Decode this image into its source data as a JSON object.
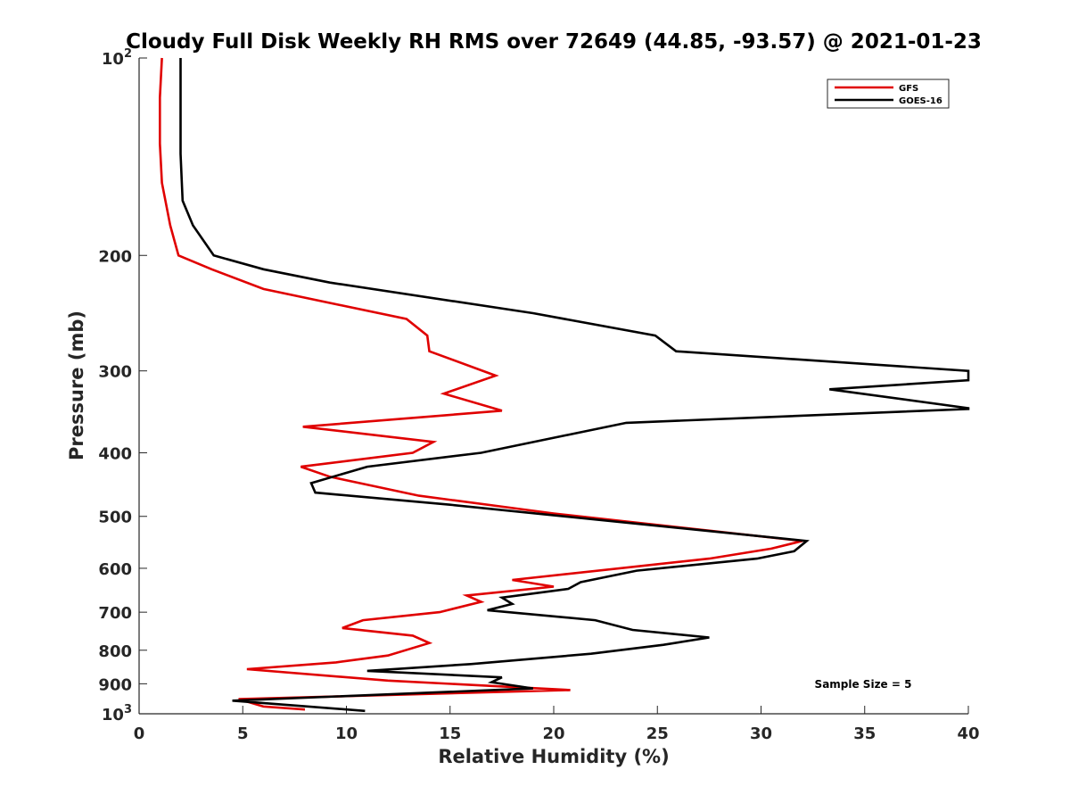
{
  "chart_data": {
    "type": "line",
    "title": "Cloudy Full Disk Weekly RH RMS over 72649 (44.85, -93.57) @ 2021-01-23",
    "xlabel": "Relative Humidity (%)",
    "ylabel": "Pressure (mb)",
    "xlim": [
      0,
      40
    ],
    "ylim": [
      100,
      1000
    ],
    "y_scale": "log",
    "y_reversed": true,
    "grid": false,
    "legend_placement": "top-right",
    "x_ticks": [
      "0",
      "5",
      "10",
      "15",
      "20",
      "25",
      "30",
      "35",
      "40"
    ],
    "x_tick_values": [
      0,
      5,
      10,
      15,
      20,
      25,
      30,
      35,
      40
    ],
    "y_ticks": [
      {
        "value": 100,
        "base": "10",
        "exp": "2"
      },
      {
        "value": 200,
        "label": "200"
      },
      {
        "value": 300,
        "label": "300"
      },
      {
        "value": 400,
        "label": "400"
      },
      {
        "value": 500,
        "label": "500"
      },
      {
        "value": 600,
        "label": "600"
      },
      {
        "value": 700,
        "label": "700"
      },
      {
        "value": 800,
        "label": "800"
      },
      {
        "value": 900,
        "label": "900"
      },
      {
        "value": 1000,
        "base": "10",
        "exp": "3"
      }
    ],
    "series": [
      {
        "name": "GFS",
        "color": "#e00000",
        "points": [
          {
            "x": 1.1,
            "y": 100
          },
          {
            "x": 1.0,
            "y": 115
          },
          {
            "x": 1.0,
            "y": 135
          },
          {
            "x": 1.1,
            "y": 155
          },
          {
            "x": 1.5,
            "y": 180
          },
          {
            "x": 1.9,
            "y": 200
          },
          {
            "x": 3.5,
            "y": 210
          },
          {
            "x": 6.0,
            "y": 225
          },
          {
            "x": 12.9,
            "y": 250
          },
          {
            "x": 13.9,
            "y": 265
          },
          {
            "x": 14.0,
            "y": 280
          },
          {
            "x": 17.2,
            "y": 305
          },
          {
            "x": 14.7,
            "y": 325
          },
          {
            "x": 17.5,
            "y": 345
          },
          {
            "x": 7.9,
            "y": 365
          },
          {
            "x": 14.2,
            "y": 385
          },
          {
            "x": 13.2,
            "y": 400
          },
          {
            "x": 7.8,
            "y": 420
          },
          {
            "x": 9.2,
            "y": 435
          },
          {
            "x": 13.5,
            "y": 465
          },
          {
            "x": 20.0,
            "y": 495
          },
          {
            "x": 32.0,
            "y": 545
          },
          {
            "x": 30.5,
            "y": 560
          },
          {
            "x": 27.5,
            "y": 580
          },
          {
            "x": 18.0,
            "y": 625
          },
          {
            "x": 20.0,
            "y": 640
          },
          {
            "x": 15.8,
            "y": 660
          },
          {
            "x": 16.5,
            "y": 675
          },
          {
            "x": 14.5,
            "y": 700
          },
          {
            "x": 10.8,
            "y": 720
          },
          {
            "x": 9.8,
            "y": 740
          },
          {
            "x": 13.2,
            "y": 760
          },
          {
            "x": 14.0,
            "y": 780
          },
          {
            "x": 12.0,
            "y": 815
          },
          {
            "x": 9.5,
            "y": 835
          },
          {
            "x": 5.2,
            "y": 855
          },
          {
            "x": 12.0,
            "y": 890
          },
          {
            "x": 20.8,
            "y": 920
          },
          {
            "x": 4.8,
            "y": 950
          },
          {
            "x": 6.0,
            "y": 975
          },
          {
            "x": 8.0,
            "y": 985
          }
        ]
      },
      {
        "name": "GOES-16",
        "color": "#000000",
        "points": [
          {
            "x": 2.0,
            "y": 100
          },
          {
            "x": 2.0,
            "y": 140
          },
          {
            "x": 2.1,
            "y": 165
          },
          {
            "x": 2.6,
            "y": 180
          },
          {
            "x": 3.6,
            "y": 200
          },
          {
            "x": 6.0,
            "y": 210
          },
          {
            "x": 9.2,
            "y": 220
          },
          {
            "x": 19.0,
            "y": 245
          },
          {
            "x": 24.9,
            "y": 265
          },
          {
            "x": 25.9,
            "y": 280
          },
          {
            "x": 40.0,
            "y": 300
          },
          {
            "x": 40.0,
            "y": 310
          },
          {
            "x": 33.3,
            "y": 320
          },
          {
            "x": 40.0,
            "y": 342
          },
          {
            "x": 40.0,
            "y": 343
          },
          {
            "x": 23.5,
            "y": 360
          },
          {
            "x": 16.5,
            "y": 400
          },
          {
            "x": 11.0,
            "y": 420
          },
          {
            "x": 8.3,
            "y": 445
          },
          {
            "x": 8.5,
            "y": 460
          },
          {
            "x": 15.0,
            "y": 480
          },
          {
            "x": 32.2,
            "y": 545
          },
          {
            "x": 31.6,
            "y": 565
          },
          {
            "x": 29.8,
            "y": 580
          },
          {
            "x": 24.0,
            "y": 605
          },
          {
            "x": 21.3,
            "y": 630
          },
          {
            "x": 20.7,
            "y": 645
          },
          {
            "x": 17.5,
            "y": 665
          },
          {
            "x": 18.0,
            "y": 680
          },
          {
            "x": 16.8,
            "y": 695
          },
          {
            "x": 22.0,
            "y": 720
          },
          {
            "x": 23.8,
            "y": 745
          },
          {
            "x": 27.5,
            "y": 765
          },
          {
            "x": 25.3,
            "y": 785
          },
          {
            "x": 21.8,
            "y": 810
          },
          {
            "x": 16.0,
            "y": 840
          },
          {
            "x": 11.0,
            "y": 860
          },
          {
            "x": 17.5,
            "y": 880
          },
          {
            "x": 17.0,
            "y": 895
          },
          {
            "x": 19.0,
            "y": 915
          },
          {
            "x": 4.5,
            "y": 955
          },
          {
            "x": 10.9,
            "y": 990
          }
        ]
      }
    ],
    "annotations": [
      "Sample Size = 5"
    ]
  }
}
